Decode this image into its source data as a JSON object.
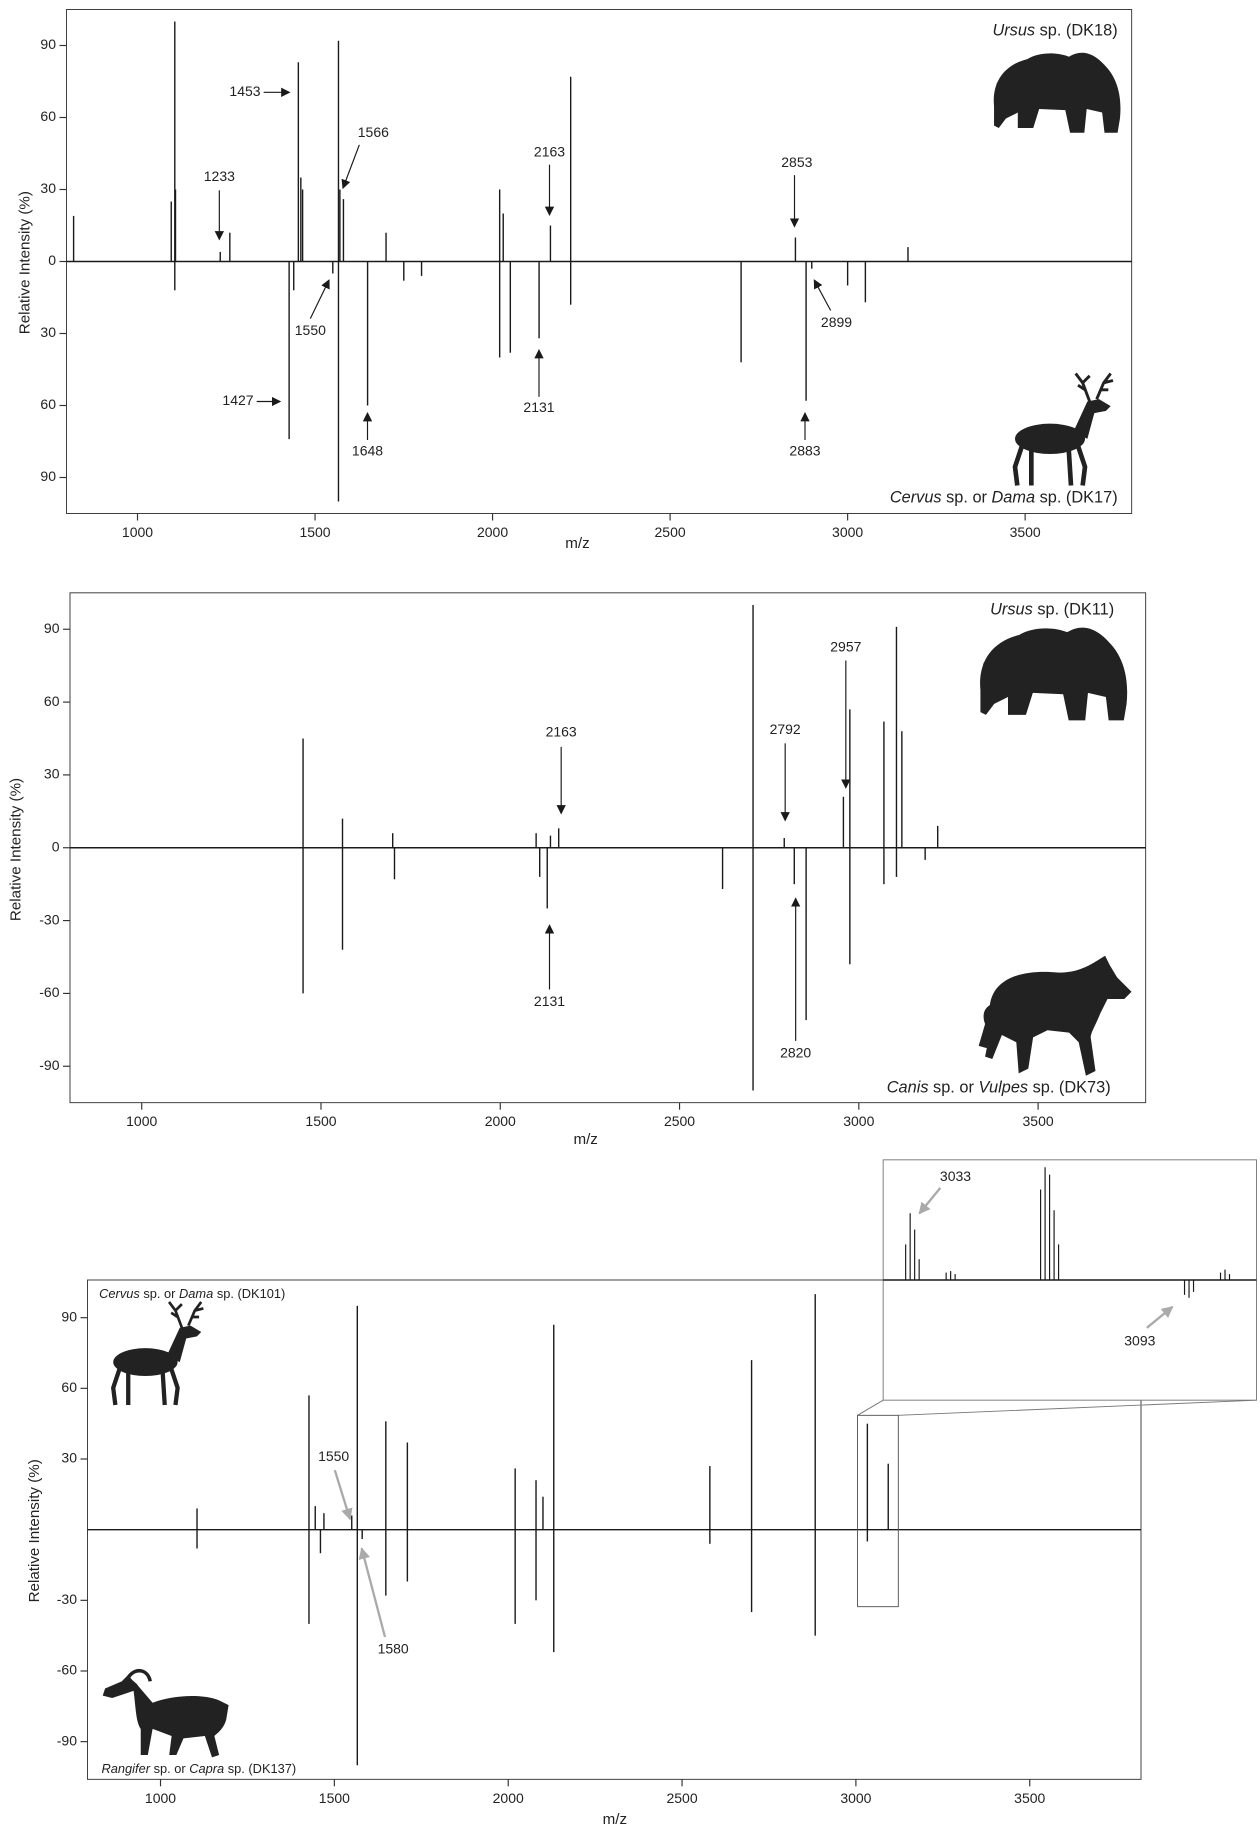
{
  "chart_data": [
    {
      "type": "mirror",
      "y_label": "Relative Intensity (%)",
      "x_label": "m/z",
      "color": "#1a1a1a",
      "annotation_color": "#1a1a1a",
      "xlim": [
        800,
        3800
      ],
      "ylim": [
        -105,
        105
      ],
      "xticks": [
        1000,
        1500,
        2000,
        2500,
        3000,
        3500
      ],
      "yticks": [
        90,
        60,
        30,
        0,
        {
          "value": -30,
          "label": "30"
        },
        {
          "value": -60,
          "label": "60"
        },
        {
          "value": -90,
          "label": "90"
        }
      ],
      "series": [
        {
          "label": [
            {
              "text": "Ursus",
              "italic": true
            },
            {
              "text": " sp. (DK18)"
            }
          ],
          "x": [
            820,
            1095,
            1105,
            1107,
            1233,
            1260,
            1453,
            1460,
            1465,
            1566,
            1570,
            1580,
            1700,
            2020,
            2030,
            2163,
            2220,
            2853,
            3170
          ],
          "values": [
            19,
            25,
            100,
            30,
            4,
            12,
            83,
            35,
            30,
            92,
            30,
            26,
            12,
            30,
            20,
            15,
            77,
            10,
            6
          ]
        },
        {
          "label": [
            {
              "text": "Cervus",
              "italic": true
            },
            {
              "text": " sp. or "
            },
            {
              "text": "Dama",
              "italic": true
            },
            {
              "text": " sp. (DK17)"
            }
          ],
          "x": [
            1105,
            1427,
            1440,
            1550,
            1566,
            1648,
            1750,
            1800,
            2020,
            2050,
            2131,
            2220,
            2700,
            2883,
            2899,
            3000,
            3050
          ],
          "values": [
            -12,
            -74,
            -12,
            -5,
            -100,
            -60,
            -8,
            -6,
            -40,
            -38,
            -32,
            -18,
            -42,
            -58,
            -3,
            -10,
            -17
          ]
        }
      ],
      "annotations": [
        1233,
        1453,
        1566,
        2163,
        2853,
        1550,
        1427,
        1648,
        2131,
        2883,
        2899
      ]
    },
    {
      "type": "mirror",
      "y_label": "Relative Intensity (%)",
      "x_label": "m/z",
      "color": "#1a1a1a",
      "annotation_color": "#1a1a1a",
      "xlim": [
        800,
        3800
      ],
      "ylim": [
        -105,
        105
      ],
      "xticks": [
        1000,
        1500,
        2000,
        2500,
        3000,
        3500
      ],
      "yticks": [
        90,
        60,
        30,
        0,
        -30,
        -60,
        -90
      ],
      "series": [
        {
          "label": [
            {
              "text": "Ursus",
              "italic": true
            },
            {
              "text": " sp. (DK11)"
            }
          ],
          "x": [
            1450,
            1560,
            1700,
            2100,
            2140,
            2163,
            2705,
            2792,
            2957,
            2975,
            3070,
            3105,
            3120,
            3220
          ],
          "values": [
            45,
            12,
            6,
            6,
            5,
            8,
            100,
            4,
            21,
            57,
            52,
            91,
            48,
            9
          ]
        },
        {
          "label": [
            {
              "text": "Canis",
              "italic": true
            },
            {
              "text": " sp. or "
            },
            {
              "text": "Vulpes",
              "italic": true
            },
            {
              "text": " sp. (DK73)"
            }
          ],
          "x": [
            1450,
            1560,
            1705,
            2110,
            2131,
            2620,
            2705,
            2820,
            2853,
            2975,
            3070,
            3105,
            3185
          ],
          "values": [
            -60,
            -42,
            -13,
            -12,
            -25,
            -17,
            -100,
            -15,
            -71,
            -48,
            -15,
            -12,
            -5
          ]
        }
      ],
      "annotations": [
        2163,
        2792,
        2957,
        2131,
        2820
      ]
    },
    {
      "type": "mirror",
      "y_label": "Relative Intensity (%)",
      "x_label": "m/z",
      "color": "#1a1a1a",
      "annotation_color": "#aaaaaa",
      "xlim": [
        790,
        3820
      ],
      "ylim": [
        -106,
        106
      ],
      "xticks": [
        1000,
        1500,
        2000,
        2500,
        3000,
        3500
      ],
      "yticks": [
        90,
        60,
        30,
        -30,
        -60,
        -90
      ],
      "series": [
        {
          "label": [
            {
              "text": "Cervus",
              "italic": true
            },
            {
              "text": " sp. or "
            },
            {
              "text": "Dama",
              "italic": true
            },
            {
              "text": " sp. (DK101)"
            }
          ],
          "x": [
            1105,
            1427,
            1445,
            1470,
            1550,
            1566,
            1648,
            1710,
            2020,
            2080,
            2100,
            2131,
            2580,
            2700,
            2883,
            3033,
            3093
          ],
          "values": [
            9,
            57,
            10,
            7,
            6,
            95,
            46,
            37,
            26,
            21,
            14,
            87,
            27,
            72,
            100,
            45,
            28
          ]
        },
        {
          "label": [
            {
              "text": "Rangifer",
              "italic": true
            },
            {
              "text": " sp. or "
            },
            {
              "text": "Capra",
              "italic": true
            },
            {
              "text": " sp. (DK137)"
            }
          ],
          "x": [
            1105,
            1427,
            1460,
            1566,
            1580,
            1648,
            1710,
            2020,
            2080,
            2131,
            2580,
            2700,
            2883,
            3033
          ],
          "values": [
            -8,
            -40,
            -10,
            -100,
            -4,
            -28,
            -22,
            -40,
            -30,
            -52,
            -6,
            -35,
            -45,
            -5
          ]
        }
      ],
      "annotations": [
        1550,
        1580
      ]
    },
    {
      "type": "mirror",
      "color": "#1a1a1a",
      "annotation_color": "#aaaaaa",
      "xlim": [
        3027,
        3110
      ],
      "ylim": [
        -81,
        81
      ],
      "series": [
        {
          "x": [
            3032,
            3033,
            3034,
            3035,
            3041,
            3042,
            3043,
            3062,
            3063,
            3064,
            3065,
            3066,
            3102,
            3103,
            3104
          ],
          "values": [
            24,
            45,
            34,
            14,
            5,
            6,
            4,
            61,
            76,
            71,
            47,
            24,
            5,
            7,
            4
          ]
        },
        {
          "x": [
            3094,
            3095,
            3096
          ],
          "values": [
            -10,
            -12,
            -8
          ]
        }
      ],
      "annotations": [
        3033,
        3093
      ]
    }
  ]
}
